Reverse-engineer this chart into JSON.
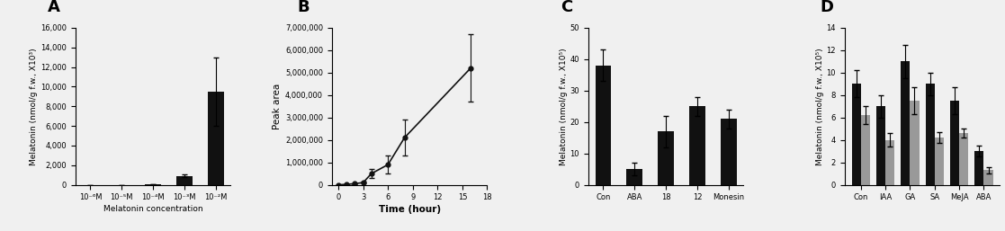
{
  "A": {
    "categories": [
      "10⁻⁶M",
      "10⁻⁵M",
      "10⁻⁴M",
      "10⁻³M",
      "10⁻²M"
    ],
    "values": [
      0,
      0,
      50,
      900,
      9500
    ],
    "errors": [
      0,
      0,
      20,
      150,
      3500
    ],
    "ylabel": "Melatonin (nmol/g f.w., X10³)",
    "xlabel": "Melatonin concentration",
    "ylim": [
      0,
      16000
    ],
    "yticks": [
      0,
      2000,
      4000,
      6000,
      8000,
      10000,
      12000,
      14000,
      16000
    ],
    "panel_label": "A"
  },
  "B": {
    "x": [
      0,
      1,
      2,
      3,
      4,
      6,
      8,
      16
    ],
    "y": [
      0,
      20000,
      50000,
      100000,
      500000,
      900000,
      2100000,
      5200000
    ],
    "errors": [
      0,
      5000,
      10000,
      30000,
      200000,
      400000,
      800000,
      1500000
    ],
    "ylabel": "Peak area",
    "xlabel": "Time (hour)",
    "ylim": [
      0,
      7000000
    ],
    "yticks": [
      0,
      1000000,
      2000000,
      3000000,
      4000000,
      5000000,
      6000000,
      7000000
    ],
    "xticks": [
      0,
      3,
      6,
      9,
      12,
      15,
      18
    ],
    "panel_label": "B"
  },
  "C": {
    "categories": [
      "Con",
      "ABA",
      "18",
      "12",
      "Monesin"
    ],
    "values": [
      38,
      5,
      17,
      25,
      21
    ],
    "errors": [
      5,
      2,
      5,
      3,
      3
    ],
    "ylabel": "Melatonin (nmol/g f.w., X10⁵)",
    "ylim": [
      0,
      50
    ],
    "yticks": [
      0,
      10,
      20,
      30,
      40,
      50
    ],
    "panel_label": "C"
  },
  "D": {
    "categories": [
      "Con",
      "IAA",
      "GA",
      "SA",
      "MeJA",
      "ABA"
    ],
    "black_values": [
      9,
      7,
      11,
      9,
      7.5,
      3
    ],
    "gray_values": [
      6.2,
      4.0,
      7.5,
      4.2,
      4.6,
      1.3
    ],
    "black_errors": [
      1.2,
      1.0,
      1.5,
      1.0,
      1.2,
      0.5
    ],
    "gray_errors": [
      0.8,
      0.6,
      1.2,
      0.5,
      0.4,
      0.3
    ],
    "ylabel": "Melatonin (nmol/g f.w., X10⁵)",
    "ylim": [
      0,
      14
    ],
    "yticks": [
      0,
      2,
      4,
      6,
      8,
      10,
      12,
      14
    ],
    "panel_label": "D"
  },
  "bar_color_black": "#111111",
  "bar_color_gray": "#999999",
  "background_color": "#f0f0f0",
  "axes_background": "#f0f0f0",
  "font_size": 6.5,
  "panel_label_fontsize": 13,
  "tick_fontsize": 6
}
